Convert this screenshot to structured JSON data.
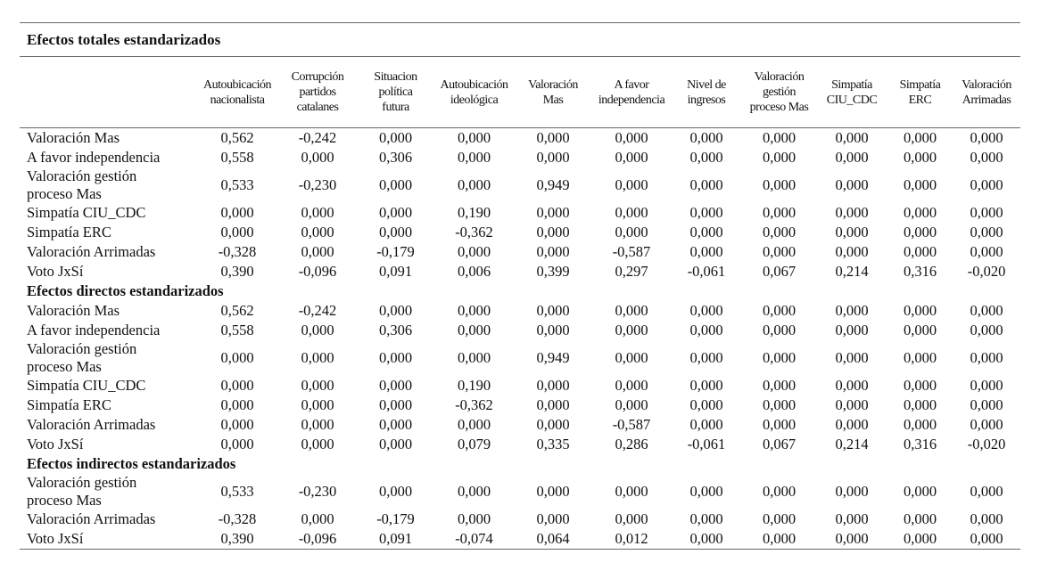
{
  "table": {
    "title": "Efectos totales estandarizados",
    "columns": [
      [
        "Autoubicación",
        "nacionalista"
      ],
      [
        "Corrupción",
        "partidos",
        "catalanes"
      ],
      [
        "Situacion",
        "política",
        "futura"
      ],
      [
        "Autoubicación",
        "ideológica"
      ],
      [
        "Valoración",
        "Mas"
      ],
      [
        "A favor",
        "independencia"
      ],
      [
        "Nivel de",
        "ingresos"
      ],
      [
        "Valoración",
        "gestión",
        "proceso Mas"
      ],
      [
        "Simpatía",
        "CIU_CDC"
      ],
      [
        "Simpatía",
        "ERC"
      ],
      [
        "Valoración",
        "Arrimadas"
      ]
    ],
    "sections": [
      {
        "rows": [
          {
            "label": "Valoración Mas",
            "values": [
              "0,562",
              "-0,242",
              "0,000",
              "0,000",
              "0,000",
              "0,000",
              "0,000",
              "0,000",
              "0,000",
              "0,000",
              "0,000"
            ]
          },
          {
            "label": "A favor independencia",
            "values": [
              "0,558",
              "0,000",
              "0,306",
              "0,000",
              "0,000",
              "0,000",
              "0,000",
              "0,000",
              "0,000",
              "0,000",
              "0,000"
            ]
          },
          {
            "label": "Valoración gestión proceso Mas",
            "values": [
              "0,533",
              "-0,230",
              "0,000",
              "0,000",
              "0,949",
              "0,000",
              "0,000",
              "0,000",
              "0,000",
              "0,000",
              "0,000"
            ]
          },
          {
            "label": "Simpatía CIU_CDC",
            "values": [
              "0,000",
              "0,000",
              "0,000",
              "0,190",
              "0,000",
              "0,000",
              "0,000",
              "0,000",
              "0,000",
              "0,000",
              "0,000"
            ]
          },
          {
            "label": "Simpatía ERC",
            "values": [
              "0,000",
              "0,000",
              "0,000",
              "-0,362",
              "0,000",
              "0,000",
              "0,000",
              "0,000",
              "0,000",
              "0,000",
              "0,000"
            ]
          },
          {
            "label": "Valoración Arrimadas",
            "values": [
              "-0,328",
              "0,000",
              "-0,179",
              "0,000",
              "0,000",
              "-0,587",
              "0,000",
              "0,000",
              "0,000",
              "0,000",
              "0,000"
            ]
          },
          {
            "label": "Voto JxSí",
            "values": [
              "0,390",
              "-0,096",
              "0,091",
              "0,006",
              "0,399",
              "0,297",
              "-0,061",
              "0,067",
              "0,214",
              "0,316",
              "-0,020"
            ]
          }
        ]
      },
      {
        "title": "Efectos directos estandarizados",
        "rows": [
          {
            "label": "Valoración Mas",
            "values": [
              "0,562",
              "-0,242",
              "0,000",
              "0,000",
              "0,000",
              "0,000",
              "0,000",
              "0,000",
              "0,000",
              "0,000",
              "0,000"
            ]
          },
          {
            "label": "A favor independencia",
            "values": [
              "0,558",
              "0,000",
              "0,306",
              "0,000",
              "0,000",
              "0,000",
              "0,000",
              "0,000",
              "0,000",
              "0,000",
              "0,000"
            ]
          },
          {
            "label": "Valoración gestión proceso Mas",
            "values": [
              "0,000",
              "0,000",
              "0,000",
              "0,000",
              "0,949",
              "0,000",
              "0,000",
              "0,000",
              "0,000",
              "0,000",
              "0,000"
            ]
          },
          {
            "label": "Simpatía CIU_CDC",
            "values": [
              "0,000",
              "0,000",
              "0,000",
              "0,190",
              "0,000",
              "0,000",
              "0,000",
              "0,000",
              "0,000",
              "0,000",
              "0,000"
            ]
          },
          {
            "label": "Simpatía ERC",
            "values": [
              "0,000",
              "0,000",
              "0,000",
              "-0,362",
              "0,000",
              "0,000",
              "0,000",
              "0,000",
              "0,000",
              "0,000",
              "0,000"
            ]
          },
          {
            "label": "Valoración Arrimadas",
            "values": [
              "0,000",
              "0,000",
              "0,000",
              "0,000",
              "0,000",
              "-0,587",
              "0,000",
              "0,000",
              "0,000",
              "0,000",
              "0,000"
            ]
          },
          {
            "label": "Voto JxSí",
            "values": [
              "0,000",
              "0,000",
              "0,000",
              "0,079",
              "0,335",
              "0,286",
              "-0,061",
              "0,067",
              "0,214",
              "0,316",
              "-0,020"
            ]
          }
        ]
      },
      {
        "title": "Efectos indirectos estandarizados",
        "rows": [
          {
            "label": "Valoración gestión proceso Mas",
            "values": [
              "0,533",
              "-0,230",
              "0,000",
              "0,000",
              "0,000",
              "0,000",
              "0,000",
              "0,000",
              "0,000",
              "0,000",
              "0,000"
            ]
          },
          {
            "label": "Valoración Arrimadas",
            "values": [
              "-0,328",
              "0,000",
              "-0,179",
              "0,000",
              "0,000",
              "0,000",
              "0,000",
              "0,000",
              "0,000",
              "0,000",
              "0,000"
            ]
          },
          {
            "label": "Voto JxSí",
            "values": [
              "0,390",
              "-0,096",
              "0,091",
              "-0,074",
              "0,064",
              "0,012",
              "0,000",
              "0,000",
              "0,000",
              "0,000",
              "0,000"
            ]
          }
        ]
      }
    ]
  }
}
